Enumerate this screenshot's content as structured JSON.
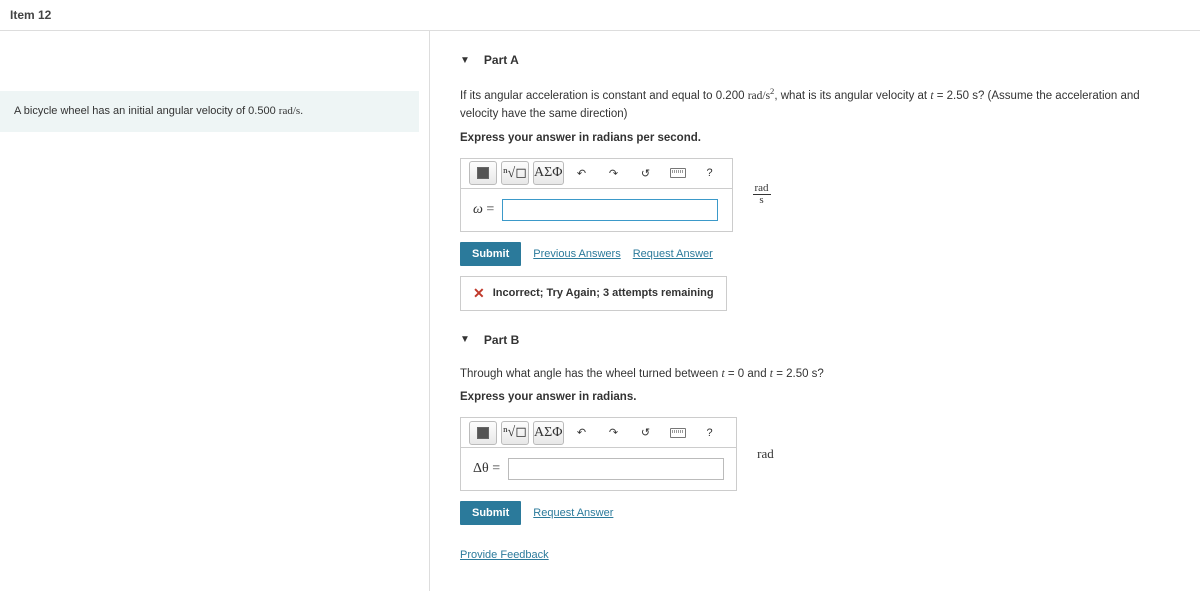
{
  "header": {
    "title": "Item 12"
  },
  "problem": {
    "text_before": "A bicycle wheel has an initial angular velocity of 0.500 ",
    "unit_html": "rad/s",
    "text_after": "."
  },
  "partA": {
    "title": "Part A",
    "q1": "If its angular acceleration is constant and equal to 0.200 ",
    "q_unit": "rad/s",
    "q2": ", what is its angular velocity at ",
    "q_t": "t",
    "q3": " = 2.50 s? (Assume the acceleration and velocity have the same direction)",
    "instruct": "Express your answer in radians per second.",
    "label": "ω",
    "eq": " = ",
    "unit_top": "rad",
    "unit_bot": "s",
    "submit": "Submit",
    "prev": "Previous Answers",
    "req": "Request Answer",
    "feedback": "Incorrect; Try Again; 3 attempts remaining"
  },
  "partB": {
    "title": "Part B",
    "q1": "Through what angle has the wheel turned between ",
    "q_t": "t",
    "q2": " = 0 and ",
    "q3": " = 2.50 s?",
    "instruct": "Express your answer in radians.",
    "label": "Δθ",
    "eq": " = ",
    "unit": "rad",
    "submit": "Submit",
    "req": "Request Answer"
  },
  "toolbar": {
    "greek": "ΑΣΦ",
    "undo": "↶",
    "redo": "↷",
    "reset": "↺",
    "help": "?"
  },
  "footer": {
    "provide": "Provide Feedback"
  },
  "colors": {
    "primary": "#2b7a9b",
    "box_bg": "#eef5f5",
    "error": "#c0392b"
  }
}
